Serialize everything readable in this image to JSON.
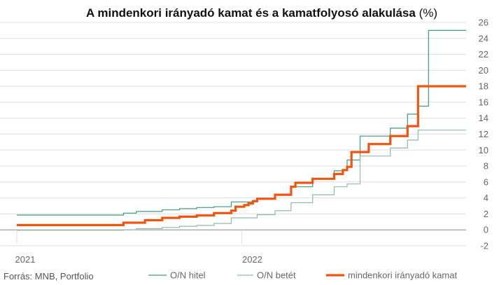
{
  "chart_data": {
    "type": "line",
    "title": "A mindenkori irányadó kamat és a kamatfolyosó alakulása",
    "title_unit": "(%)",
    "source": "Forrás: MNB, Portfolio",
    "x_tick_labels": [
      {
        "label": "2021",
        "date": "2021-01-01"
      },
      {
        "label": "2022",
        "date": "2022-01-01"
      }
    ],
    "xlim": [
      "2021-01-01",
      "2022-12-31"
    ],
    "ylim": [
      -2,
      26
    ],
    "y_ticks": [
      -2,
      0,
      2,
      4,
      6,
      8,
      10,
      12,
      14,
      16,
      18,
      20,
      22,
      24,
      26
    ],
    "y_axis_position": "right",
    "grid": true,
    "legend_position": "bottom",
    "colors": {
      "hitel": "#3a9a7e",
      "betet": "#8fb9ad",
      "base": "#ee5511",
      "grid": "#dddddd",
      "zero": "#888888"
    },
    "series": [
      {
        "name": "O/N hitel",
        "points": [
          [
            "2021-01-01",
            1.85
          ],
          [
            "2021-06-23",
            2.1
          ],
          [
            "2021-07-14",
            2.3
          ],
          [
            "2021-08-25",
            2.5
          ],
          [
            "2021-09-22",
            2.65
          ],
          [
            "2021-10-20",
            2.8
          ],
          [
            "2021-11-17",
            2.9
          ],
          [
            "2021-12-15",
            3.5
          ],
          [
            "2022-01-26",
            3.9
          ],
          [
            "2022-02-24",
            4.4
          ],
          [
            "2022-03-22",
            5.4
          ],
          [
            "2022-04-26",
            6.4
          ],
          [
            "2022-05-31",
            7.4
          ],
          [
            "2022-06-21",
            8.75
          ],
          [
            "2022-07-12",
            11.75
          ],
          [
            "2022-08-30",
            12.75
          ],
          [
            "2022-09-27",
            14.5
          ],
          [
            "2022-10-14",
            15.5
          ],
          [
            "2022-10-31",
            25.0
          ],
          [
            "2022-12-31",
            25.0
          ]
        ]
      },
      {
        "name": "O/N betét",
        "points": [
          [
            "2021-01-01",
            -0.05
          ],
          [
            "2021-06-23",
            0.0
          ],
          [
            "2021-07-14",
            0.15
          ],
          [
            "2021-08-25",
            0.3
          ],
          [
            "2021-09-22",
            0.45
          ],
          [
            "2021-10-20",
            0.55
          ],
          [
            "2021-11-17",
            0.8
          ],
          [
            "2021-12-15",
            1.5
          ],
          [
            "2022-01-26",
            1.9
          ],
          [
            "2022-02-24",
            2.4
          ],
          [
            "2022-03-22",
            3.4
          ],
          [
            "2022-04-26",
            4.4
          ],
          [
            "2022-05-31",
            5.4
          ],
          [
            "2022-06-21",
            5.75
          ],
          [
            "2022-07-12",
            9.25
          ],
          [
            "2022-08-30",
            10.25
          ],
          [
            "2022-09-27",
            11.25
          ],
          [
            "2022-10-14",
            12.5
          ],
          [
            "2022-12-31",
            12.5
          ]
        ]
      },
      {
        "name": "mindenkori irányadó kamat",
        "points": [
          [
            "2021-01-01",
            0.6
          ],
          [
            "2021-06-23",
            0.9
          ],
          [
            "2021-07-28",
            1.2
          ],
          [
            "2021-08-25",
            1.5
          ],
          [
            "2021-09-22",
            1.65
          ],
          [
            "2021-10-20",
            1.8
          ],
          [
            "2021-11-17",
            2.1
          ],
          [
            "2021-12-15",
            2.4
          ],
          [
            "2021-12-22",
            2.9
          ],
          [
            "2022-01-05",
            3.1
          ],
          [
            "2022-01-12",
            3.3
          ],
          [
            "2022-01-19",
            3.6
          ],
          [
            "2022-01-26",
            3.9
          ],
          [
            "2022-02-24",
            4.4
          ],
          [
            "2022-03-22",
            5.4
          ],
          [
            "2022-03-29",
            5.9
          ],
          [
            "2022-04-26",
            6.4
          ],
          [
            "2022-05-31",
            7.0
          ],
          [
            "2022-06-14",
            7.5
          ],
          [
            "2022-06-21",
            7.9
          ],
          [
            "2022-06-28",
            9.75
          ],
          [
            "2022-07-26",
            10.75
          ],
          [
            "2022-08-30",
            11.75
          ],
          [
            "2022-09-27",
            13.0
          ],
          [
            "2022-10-14",
            18.0
          ],
          [
            "2022-12-31",
            18.0
          ]
        ]
      }
    ]
  }
}
